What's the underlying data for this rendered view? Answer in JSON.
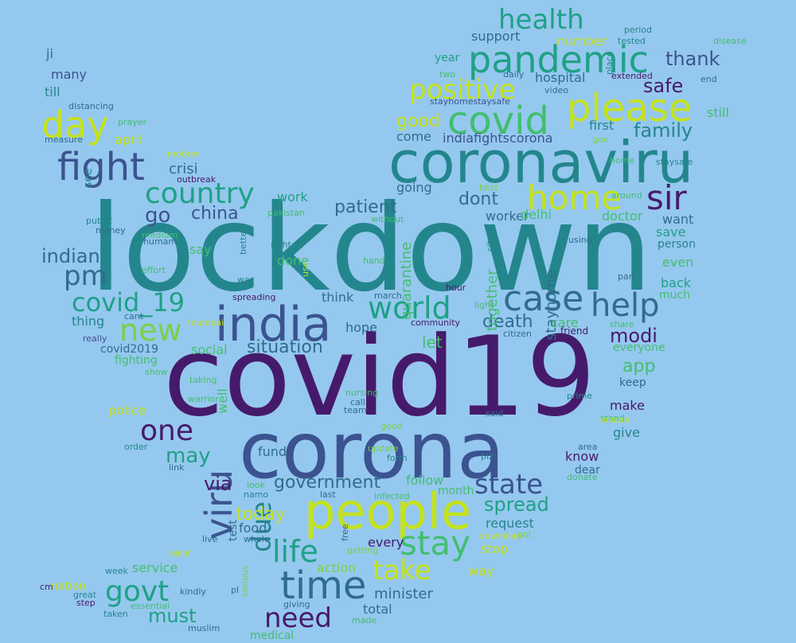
{
  "palette": {
    "background": "#95c8ee",
    "d": "#461a6b",
    "p": "#3b5390",
    "b": "#2f6c8e",
    "t": "#23868d",
    "g": "#1fa186",
    "m": "#42be70",
    "l": "#7ad048",
    "y": "#c4e21c"
  },
  "words": [
    {
      "text": "lockdown",
      "c": "t"
    },
    {
      "text": "covid19",
      "c": "d"
    },
    {
      "text": "corona",
      "c": "p"
    },
    {
      "text": "coronaviru",
      "c": "t"
    },
    {
      "text": "india",
      "c": "p"
    },
    {
      "text": "people",
      "c": "y"
    },
    {
      "text": "pandemic",
      "c": "g"
    },
    {
      "text": "covid",
      "c": "m"
    },
    {
      "text": "please",
      "c": "y"
    },
    {
      "text": "fight",
      "c": "p"
    },
    {
      "text": "day",
      "c": "y"
    },
    {
      "text": "home",
      "c": "y"
    },
    {
      "text": "sir",
      "c": "d"
    },
    {
      "text": "case",
      "c": "b"
    },
    {
      "text": "help",
      "c": "b"
    },
    {
      "text": "time",
      "c": "b"
    },
    {
      "text": "viru",
      "c": "p"
    },
    {
      "text": "stay",
      "c": "m"
    },
    {
      "text": "life",
      "c": "g"
    },
    {
      "text": "world",
      "c": "g"
    },
    {
      "text": "new",
      "c": "l"
    },
    {
      "text": "country",
      "c": "g"
    },
    {
      "text": "health",
      "c": "g"
    },
    {
      "text": "one",
      "c": "d"
    },
    {
      "text": "need",
      "c": "d"
    },
    {
      "text": "pm",
      "c": "b"
    },
    {
      "text": "govt",
      "c": "g"
    },
    {
      "text": "take",
      "c": "y"
    },
    {
      "text": "state",
      "c": "p"
    },
    {
      "text": "due",
      "c": "t"
    },
    {
      "text": "positive",
      "c": "y"
    },
    {
      "text": "covid_19",
      "c": "g"
    },
    {
      "text": "thank",
      "c": "p"
    },
    {
      "text": "safe",
      "c": "d"
    },
    {
      "text": "family",
      "c": "t"
    },
    {
      "text": "go",
      "c": "p"
    },
    {
      "text": "patient",
      "c": "b"
    },
    {
      "text": "dont",
      "c": "b"
    },
    {
      "text": "situation",
      "c": "b"
    },
    {
      "text": "may",
      "c": "g"
    },
    {
      "text": "government",
      "c": "b"
    },
    {
      "text": "china",
      "c": "p"
    },
    {
      "text": "indian",
      "c": "b"
    },
    {
      "text": "modi",
      "c": "d"
    },
    {
      "text": "death",
      "c": "b"
    },
    {
      "text": "spread",
      "c": "g"
    },
    {
      "text": "today",
      "c": "y"
    },
    {
      "text": "app",
      "c": "m"
    },
    {
      "text": "good",
      "c": "y"
    },
    {
      "text": "hospital",
      "c": "b"
    },
    {
      "text": "support",
      "c": "b"
    },
    {
      "text": "indiafightscorona",
      "c": "p"
    },
    {
      "text": "via",
      "c": "d"
    },
    {
      "text": "must",
      "c": "g"
    },
    {
      "text": "minister",
      "c": "b"
    },
    {
      "text": "crisi",
      "c": "b"
    },
    {
      "text": "stayhome",
      "c": "b"
    },
    {
      "text": "quarantine",
      "c": "m"
    },
    {
      "text": "together",
      "c": "m"
    },
    {
      "text": "let",
      "c": "m"
    },
    {
      "text": "request",
      "c": "t"
    },
    {
      "text": "food",
      "c": "b"
    },
    {
      "text": "total",
      "c": "b"
    },
    {
      "text": "fund",
      "c": "b"
    },
    {
      "text": "work",
      "c": "g"
    },
    {
      "text": "hope",
      "c": "b"
    },
    {
      "text": "come",
      "c": "b"
    },
    {
      "text": "going",
      "c": "b"
    },
    {
      "text": "worker",
      "c": "b"
    },
    {
      "text": "delhi",
      "c": "m"
    },
    {
      "text": "doctor",
      "c": "m"
    },
    {
      "text": "want",
      "c": "b"
    },
    {
      "text": "save",
      "c": "g"
    },
    {
      "text": "person",
      "c": "t"
    },
    {
      "text": "even",
      "c": "m"
    },
    {
      "text": "back",
      "c": "g"
    },
    {
      "text": "much",
      "c": "m"
    },
    {
      "text": "care",
      "c": "m"
    },
    {
      "text": "friend",
      "c": "d"
    },
    {
      "text": "everyone",
      "c": "m"
    },
    {
      "text": "keep",
      "c": "b"
    },
    {
      "text": "make",
      "c": "d"
    },
    {
      "text": "give",
      "c": "t"
    },
    {
      "text": "know",
      "c": "d"
    },
    {
      "text": "dear",
      "c": "b"
    },
    {
      "text": "follow",
      "c": "m"
    },
    {
      "text": "month",
      "c": "m"
    },
    {
      "text": "stop",
      "c": "y"
    },
    {
      "text": "every",
      "c": "d"
    },
    {
      "text": "action",
      "c": "l"
    },
    {
      "text": "way",
      "c": "y"
    },
    {
      "text": "first",
      "c": "t"
    },
    {
      "text": "still",
      "c": "m"
    },
    {
      "text": "year",
      "c": "g"
    },
    {
      "text": "number",
      "c": "y"
    },
    {
      "text": "think",
      "c": "b"
    },
    {
      "text": "done",
      "c": "m"
    },
    {
      "text": "say",
      "c": "m"
    },
    {
      "text": "social",
      "c": "m"
    },
    {
      "text": "well",
      "c": "m"
    },
    {
      "text": "test",
      "c": "b"
    },
    {
      "text": "police",
      "c": "y"
    },
    {
      "text": "april",
      "c": "y"
    },
    {
      "text": "thing",
      "c": "t"
    },
    {
      "text": "covid2019",
      "c": "b"
    },
    {
      "text": "fighting",
      "c": "m"
    },
    {
      "text": "service",
      "c": "m"
    },
    {
      "text": "nation",
      "c": "y"
    },
    {
      "text": "many",
      "c": "p"
    },
    {
      "text": "till",
      "c": "t"
    },
    {
      "text": "ji",
      "c": "b"
    },
    {
      "text": "distancing",
      "c": "b"
    },
    {
      "text": "prayer",
      "c": "m"
    },
    {
      "text": "measure",
      "c": "b"
    },
    {
      "text": "mother",
      "c": "y"
    },
    {
      "text": "outbreak",
      "c": "d"
    },
    {
      "text": "see",
      "c": "t"
    },
    {
      "text": "pakistan",
      "c": "m"
    },
    {
      "text": "money",
      "c": "b"
    },
    {
      "text": "medium",
      "c": "m"
    },
    {
      "text": "human",
      "c": "b"
    },
    {
      "text": "effort",
      "c": "m"
    },
    {
      "text": "public",
      "c": "t"
    },
    {
      "text": "right",
      "c": "t"
    },
    {
      "text": "better",
      "c": "t"
    },
    {
      "text": "war",
      "c": "t"
    },
    {
      "text": "spreading",
      "c": "d"
    },
    {
      "text": "cant",
      "c": "b"
    },
    {
      "text": "really",
      "c": "p"
    },
    {
      "text": "show",
      "c": "m"
    },
    {
      "text": "taking",
      "c": "m"
    },
    {
      "text": "warrior",
      "c": "m"
    },
    {
      "text": "order",
      "c": "t"
    },
    {
      "text": "link",
      "c": "b"
    },
    {
      "text": "look",
      "c": "m"
    },
    {
      "text": "namo",
      "c": "t"
    },
    {
      "text": "last",
      "c": "b"
    },
    {
      "text": "infected",
      "c": "m"
    },
    {
      "text": "whole",
      "c": "b"
    },
    {
      "text": "live",
      "c": "b"
    },
    {
      "text": "relief",
      "c": "y"
    },
    {
      "text": "week",
      "c": "t"
    },
    {
      "text": "kindly",
      "c": "b"
    },
    {
      "text": "great",
      "c": "t"
    },
    {
      "text": "step",
      "c": "d"
    },
    {
      "text": "cm",
      "c": "d"
    },
    {
      "text": "essential",
      "c": "m"
    },
    {
      "text": "taken",
      "c": "t"
    },
    {
      "text": "muslim",
      "c": "b"
    },
    {
      "text": "giving",
      "c": "b"
    },
    {
      "text": "made",
      "c": "m"
    },
    {
      "text": "medical",
      "c": "m"
    },
    {
      "text": "getting",
      "c": "l"
    },
    {
      "text": "free",
      "c": "b"
    },
    {
      "text": "form",
      "c": "t"
    },
    {
      "text": "update",
      "c": "l"
    },
    {
      "text": "plz",
      "c": "t"
    },
    {
      "text": "area",
      "c": "b"
    },
    {
      "text": "donate",
      "c": "m"
    },
    {
      "text": "download",
      "c": "y"
    },
    {
      "text": "got",
      "c": "l"
    },
    {
      "text": "said",
      "c": "b"
    },
    {
      "text": "prime",
      "c": "t"
    },
    {
      "text": "stand",
      "c": "m"
    },
    {
      "text": "team",
      "c": "b"
    },
    {
      "text": "call",
      "c": "b"
    },
    {
      "text": "nursing",
      "c": "m"
    },
    {
      "text": "citizen",
      "c": "b"
    },
    {
      "text": "community",
      "c": "d"
    },
    {
      "text": "light",
      "c": "m"
    },
    {
      "text": "share",
      "c": "m"
    },
    {
      "text": "hour",
      "c": "d"
    },
    {
      "text": "march",
      "c": "b"
    },
    {
      "text": "hand",
      "c": "m"
    },
    {
      "text": "part",
      "c": "b"
    },
    {
      "text": "city",
      "c": "t"
    },
    {
      "text": "using",
      "c": "b"
    },
    {
      "text": "without",
      "c": "m"
    },
    {
      "text": "best",
      "c": "l"
    },
    {
      "text": "around",
      "c": "m"
    },
    {
      "text": "stayhomestaysafe",
      "c": "p"
    },
    {
      "text": "video",
      "c": "b"
    },
    {
      "text": "daily",
      "c": "b"
    },
    {
      "text": "two",
      "c": "m"
    },
    {
      "text": "extended",
      "c": "d"
    },
    {
      "text": "period",
      "c": "t"
    },
    {
      "text": "tested",
      "c": "t"
    },
    {
      "text": "disease",
      "c": "m"
    },
    {
      "text": "end",
      "c": "b"
    },
    {
      "text": "staysafe",
      "c": "t"
    },
    {
      "text": "gov",
      "c": "l"
    },
    {
      "text": "place",
      "c": "t"
    },
    {
      "text": "ensure",
      "c": "y"
    },
    {
      "text": "good",
      "c": "l"
    },
    {
      "text": "home",
      "c": "m"
    },
    {
      "text": "use",
      "c": "y"
    },
    {
      "text": "pl",
      "c": "b"
    },
    {
      "text": "mumbai",
      "c": "y"
    },
    {
      "text": "serious",
      "c": "l"
    }
  ]
}
